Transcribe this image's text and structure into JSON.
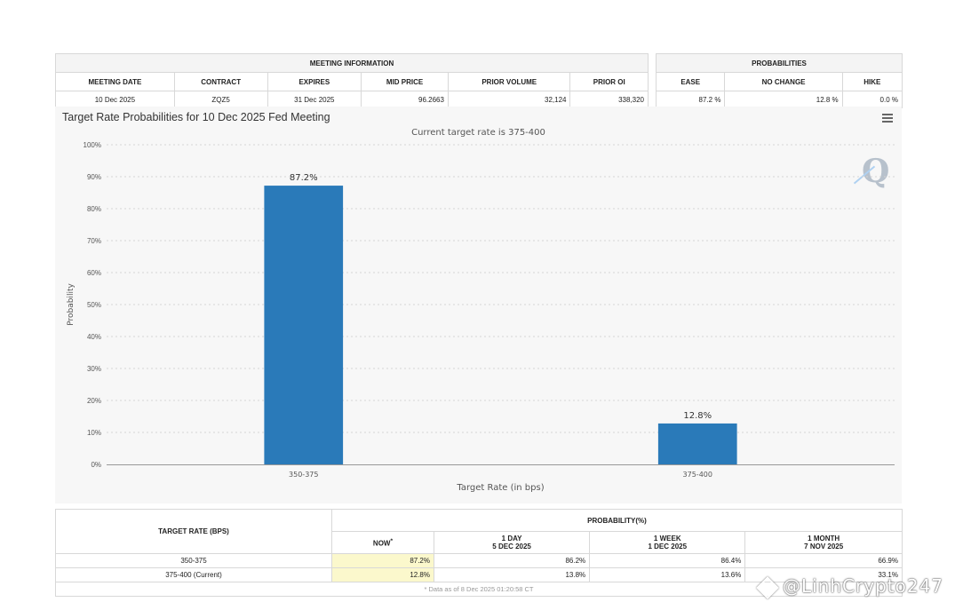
{
  "meeting_info": {
    "title": "MEETING INFORMATION",
    "headers": [
      "MEETING DATE",
      "CONTRACT",
      "EXPIRES",
      "MID PRICE",
      "PRIOR VOLUME",
      "PRIOR OI"
    ],
    "values": [
      "10 Dec 2025",
      "ZQZ5",
      "31 Dec 2025",
      "96.2663",
      "32,124",
      "338,320"
    ]
  },
  "probabilities": {
    "title": "PROBABILITIES",
    "headers": [
      "EASE",
      "NO CHANGE",
      "HIKE"
    ],
    "values": [
      "87.2 %",
      "12.8 %",
      "0.0 %"
    ]
  },
  "chart_data": {
    "type": "bar",
    "title": "Target Rate Probabilities for 10 Dec 2025 Fed Meeting",
    "subtitle": "Current target rate is 375-400",
    "xlabel": "Target Rate (in bps)",
    "ylabel": "Probability",
    "categories": [
      "350-375",
      "375-400"
    ],
    "values": [
      87.2,
      12.8
    ],
    "data_labels": [
      "87.2%",
      "12.8%"
    ],
    "ylim": [
      0,
      100
    ],
    "yticks": [
      "0%",
      "10%",
      "20%",
      "30%",
      "40%",
      "50%",
      "60%",
      "70%",
      "80%",
      "90%",
      "100%"
    ],
    "bar_color": "#2a7ab9",
    "grid": true
  },
  "history": {
    "target_rate_header": "TARGET RATE (BPS)",
    "probability_header": "PROBABILITY(%)",
    "columns": [
      {
        "line1": "NOW",
        "sup": "*",
        "line2": ""
      },
      {
        "line1": "1 DAY",
        "line2": "5 DEC 2025"
      },
      {
        "line1": "1 WEEK",
        "line2": "1 DEC 2025"
      },
      {
        "line1": "1 MONTH",
        "line2": "7 NOV 2025"
      }
    ],
    "rows": [
      {
        "rate": "350-375",
        "values": [
          "87.2%",
          "86.2%",
          "86.4%",
          "66.9%"
        ]
      },
      {
        "rate": "375-400 (Current)",
        "values": [
          "12.8%",
          "13.8%",
          "13.6%",
          "33.1%"
        ]
      }
    ],
    "footnote": "* Data as of 8 Dec 2025 01:20:58 CT"
  },
  "watermark": "@LinhCrypto247"
}
